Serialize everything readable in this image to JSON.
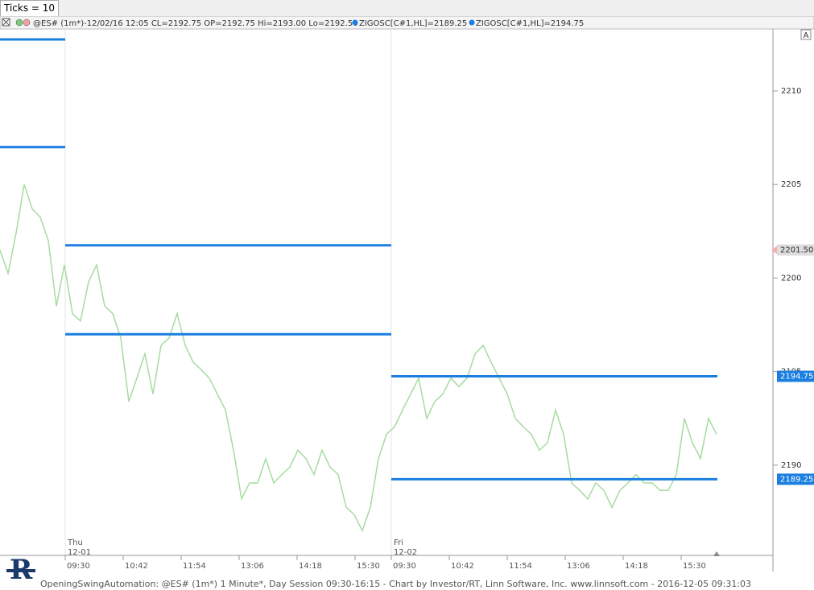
{
  "chart_data": {
    "type": "line",
    "toolbar_label": "Ticks = 10",
    "header": "@ES# (1m*)-12/02/16 12:05 CL=2192.75 OP=2192.75 Hi=2193.00 Lo=2192.50",
    "indicators": [
      "ZIGOSC[C#1,HL]=2189.25",
      "ZIGOSC[C#1,HL]=2194.75"
    ],
    "scale_button": "A",
    "footer": "OpeningSwingAutomation: @ES# (1m*) 1 Minute*, Day Session 09:30-16:15 - Chart by Investor/RT, Linn Software, Inc. www.linnsoft.com - 2016-12-05 09:31:03",
    "xlim": [
      0,
      960
    ],
    "ylim": [
      2185.18,
      2213.31
    ],
    "yticks": [
      2190,
      2195,
      2200,
      2205,
      2210
    ],
    "xticks": [
      {
        "value": 81,
        "label": "09:30"
      },
      {
        "value": 153,
        "label": "10:42"
      },
      {
        "value": 225,
        "label": "11:54"
      },
      {
        "value": 297,
        "label": "13:06"
      },
      {
        "value": 369,
        "label": "14:18"
      },
      {
        "value": 441,
        "label": "15:30"
      },
      {
        "value": 486,
        "label": "09:30"
      },
      {
        "value": 558,
        "label": "10:42"
      },
      {
        "value": 630,
        "label": "11:54"
      },
      {
        "value": 702,
        "label": "13:06"
      },
      {
        "value": 774,
        "label": "14:18"
      },
      {
        "value": 846,
        "label": "15:30"
      }
    ],
    "sessions": [
      {
        "start": 81,
        "day": "Thu",
        "date": "12-01"
      },
      {
        "start": 486,
        "day": "Fri",
        "date": "12-02"
      }
    ],
    "series": [
      {
        "name": "@ES#",
        "color": "#a6dca0",
        "x": [
          0,
          10,
          20,
          30,
          40,
          50,
          60,
          70,
          80,
          90,
          100,
          110,
          120,
          130,
          140,
          150,
          160,
          170,
          180,
          190,
          200,
          210,
          220,
          230,
          240,
          250,
          260,
          270,
          280,
          290,
          300,
          310,
          320,
          330,
          340,
          350,
          360,
          370,
          380,
          390,
          400,
          410,
          420,
          430,
          440,
          450,
          460,
          470,
          480,
          490,
          500,
          510,
          520,
          530,
          540,
          550,
          560,
          570,
          580,
          590,
          600,
          610,
          620,
          630,
          640,
          650,
          660,
          670,
          680,
          690,
          700,
          710,
          720,
          730,
          740,
          750,
          760,
          770,
          780,
          790,
          800,
          810,
          820,
          830,
          840,
          850,
          860,
          870,
          880,
          890
        ],
        "values": [
          2201.5,
          2200.25,
          2202.4,
          2205.0,
          2203.7,
          2203.25,
          2202.0,
          2198.5,
          2200.7,
          2198.1,
          2197.7,
          2199.8,
          2200.7,
          2198.5,
          2198.1,
          2196.8,
          2193.4,
          2194.65,
          2195.95,
          2193.8,
          2196.4,
          2196.8,
          2198.1,
          2196.4,
          2195.5,
          2195.1,
          2194.65,
          2193.8,
          2192.95,
          2190.8,
          2188.2,
          2189.05,
          2189.05,
          2190.35,
          2189.05,
          2189.5,
          2189.9,
          2190.8,
          2190.35,
          2189.5,
          2190.8,
          2189.9,
          2189.5,
          2187.75,
          2187.35,
          2186.5,
          2187.75,
          2190.35,
          2191.65,
          2192.05,
          2192.95,
          2193.8,
          2194.65,
          2192.5,
          2193.4,
          2193.8,
          2194.65,
          2194.2,
          2194.65,
          2195.95,
          2196.4,
          2195.5,
          2194.65,
          2193.8,
          2192.5,
          2192.05,
          2191.65,
          2190.8,
          2191.2,
          2192.95,
          2191.65,
          2189.05,
          2188.65,
          2188.2,
          2189.05,
          2188.65,
          2187.75,
          2188.65,
          2189.05,
          2189.5,
          2189.05,
          2189.05,
          2188.65,
          2188.65,
          2189.5,
          2192.5,
          2191.2,
          2190.35,
          2192.5,
          2191.65
        ]
      }
    ],
    "levels": [
      {
        "value": 2212.75,
        "x": [
          0,
          81
        ]
      },
      {
        "value": 2207,
        "x": [
          0,
          81
        ]
      },
      {
        "value": 2201.75,
        "x": [
          81,
          486
        ]
      },
      {
        "value": 2197,
        "x": [
          81,
          486
        ]
      },
      {
        "value": 2194.75,
        "x": [
          486,
          891
        ]
      },
      {
        "value": 2189.25,
        "x": [
          486,
          891
        ]
      }
    ],
    "level_color": "#1a7fe0",
    "labeled_levels": [
      4,
      5
    ],
    "price_marker": {
      "value": 2201.5,
      "label": "2201.50"
    }
  }
}
